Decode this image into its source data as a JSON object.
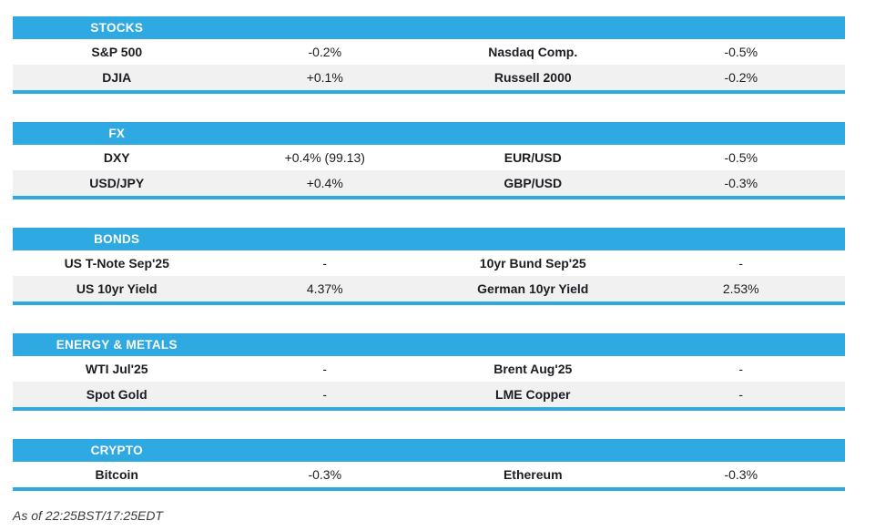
{
  "colors": {
    "accent": "#2EA9E2",
    "row_alt": "#F1F1F2",
    "header_text": "#FFFFFF",
    "body_text": "#1B1D21"
  },
  "sections": [
    {
      "title": "STOCKS",
      "rows": [
        {
          "label1": "S&P 500",
          "value1": "-0.2%",
          "label2": "Nasdaq Comp.",
          "value2": "-0.5%"
        },
        {
          "label1": "DJIA",
          "value1": "+0.1%",
          "label2": "Russell 2000",
          "value2": "-0.2%"
        }
      ]
    },
    {
      "title": "FX",
      "rows": [
        {
          "label1": "DXY",
          "value1": "+0.4% (99.13)",
          "label2": "EUR/USD",
          "value2": "-0.5%"
        },
        {
          "label1": "USD/JPY",
          "value1": "+0.4%",
          "label2": "GBP/USD",
          "value2": "-0.3%"
        }
      ]
    },
    {
      "title": "BONDS",
      "rows": [
        {
          "label1": "US T-Note Sep'25",
          "value1": "-",
          "label2": "10yr Bund Sep'25",
          "value2": "-"
        },
        {
          "label1": "US 10yr Yield",
          "value1": "4.37%",
          "label2": "German 10yr Yield",
          "value2": "2.53%"
        }
      ]
    },
    {
      "title": "ENERGY & METALS",
      "rows": [
        {
          "label1": "WTI Jul'25",
          "value1": "-",
          "label2": "Brent Aug'25",
          "value2": "-"
        },
        {
          "label1": "Spot Gold",
          "value1": "-",
          "label2": "LME Copper",
          "value2": "-"
        }
      ]
    },
    {
      "title": "CRYPTO",
      "rows": [
        {
          "label1": "Bitcoin",
          "value1": "-0.3%",
          "label2": "Ethereum",
          "value2": "-0.3%"
        }
      ]
    }
  ],
  "footer": {
    "as_of": "As of 22:25BST/17:25EDT"
  }
}
